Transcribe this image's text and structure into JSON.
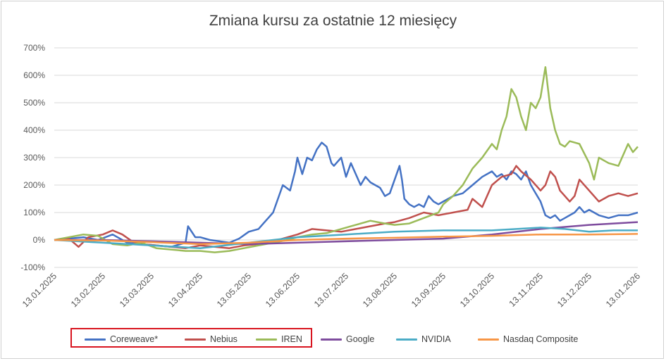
{
  "chart_data": {
    "type": "line",
    "title": "Zmiana kursu za ostatnie 12 miesięcy",
    "xlabel": "",
    "ylabel": "",
    "ylim": [
      -100,
      700
    ],
    "yticks": [
      "-100%",
      "0%",
      "100%",
      "200%",
      "300%",
      "400%",
      "500%",
      "600%",
      "700%"
    ],
    "ytick_values": [
      -100,
      0,
      100,
      200,
      300,
      400,
      500,
      600,
      700
    ],
    "xticks": [
      "13.01.2025",
      "13.02.2025",
      "13.03.2025",
      "13.04.2025",
      "13.05.2025",
      "13.06.2025",
      "13.07.2025",
      "13.08.2025",
      "13.09.2025",
      "13.10.2025",
      "13.11.2025",
      "13.12.2025",
      "13.01.2026"
    ],
    "x_months": [
      0,
      1,
      2,
      3,
      4,
      5,
      6,
      7,
      8,
      9,
      10,
      11,
      12
    ],
    "grid": true,
    "legend_position": "bottom",
    "highlighted_legend": [
      "Coreweave*",
      "Nebius",
      "IREN"
    ],
    "series": [
      {
        "name": "Coreweave*",
        "color": "#4472c4",
        "x": [
          0,
          0.3,
          0.6,
          0.9,
          1.2,
          1.5,
          1.8,
          2.1,
          2.4,
          2.7,
          2.75,
          2.9,
          3.0,
          3.2,
          3.4,
          3.6,
          3.8,
          4.0,
          4.2,
          4.3,
          4.5,
          4.7,
          4.85,
          4.95,
          5.0,
          5.1,
          5.2,
          5.3,
          5.4,
          5.5,
          5.6,
          5.7,
          5.75,
          5.9,
          6.0,
          6.1,
          6.2,
          6.3,
          6.4,
          6.5,
          6.6,
          6.7,
          6.8,
          6.9,
          7.0,
          7.1,
          7.15,
          7.2,
          7.3,
          7.4,
          7.5,
          7.6,
          7.7,
          7.8,
          7.9,
          8.0,
          8.2,
          8.4,
          8.6,
          8.8,
          9.0,
          9.1,
          9.2,
          9.3,
          9.4,
          9.5,
          9.6,
          9.7,
          9.8,
          9.9,
          10.0,
          10.1,
          10.2,
          10.3,
          10.4,
          10.5,
          10.6,
          10.7,
          10.8,
          10.9,
          11.0,
          11.2,
          11.4,
          11.6,
          11.8,
          12.0
        ],
        "values": [
          0,
          5,
          10,
          0,
          20,
          -10,
          -15,
          -20,
          -25,
          -10,
          50,
          10,
          10,
          0,
          -5,
          -10,
          5,
          30,
          40,
          60,
          100,
          200,
          180,
          250,
          300,
          240,
          300,
          290,
          330,
          355,
          340,
          280,
          270,
          300,
          230,
          280,
          240,
          200,
          230,
          210,
          200,
          190,
          160,
          170,
          220,
          270,
          220,
          150,
          130,
          120,
          130,
          120,
          160,
          140,
          130,
          140,
          160,
          170,
          200,
          230,
          250,
          230,
          240,
          220,
          250,
          240,
          220,
          250,
          200,
          170,
          140,
          90,
          80,
          90,
          70,
          80,
          90,
          100,
          120,
          100,
          110,
          90,
          80,
          90,
          90,
          100
        ]
      },
      {
        "name": "Nebius",
        "color": "#c0504d",
        "x": [
          0,
          0.3,
          0.5,
          0.7,
          1.0,
          1.2,
          1.4,
          1.6,
          1.8,
          2.1,
          2.4,
          2.7,
          3.0,
          3.3,
          3.6,
          3.9,
          4.2,
          4.5,
          4.8,
          5.0,
          5.3,
          5.6,
          5.9,
          6.2,
          6.5,
          6.8,
          7.0,
          7.3,
          7.6,
          7.9,
          8.2,
          8.5,
          8.6,
          8.8,
          9.0,
          9.2,
          9.4,
          9.5,
          9.6,
          9.8,
          10.0,
          10.1,
          10.2,
          10.3,
          10.4,
          10.5,
          10.6,
          10.7,
          10.8,
          11.0,
          11.2,
          11.4,
          11.6,
          11.8,
          12.0
        ],
        "values": [
          0,
          5,
          -25,
          10,
          20,
          35,
          20,
          -5,
          -15,
          -20,
          -25,
          -30,
          -20,
          -25,
          -30,
          -20,
          -15,
          -5,
          10,
          20,
          40,
          35,
          30,
          40,
          50,
          60,
          65,
          80,
          100,
          90,
          100,
          110,
          150,
          120,
          200,
          230,
          240,
          270,
          250,
          220,
          180,
          200,
          250,
          230,
          180,
          160,
          140,
          160,
          220,
          180,
          140,
          160,
          170,
          160,
          170
        ]
      },
      {
        "name": "IREN",
        "color": "#9bbb59",
        "x": [
          0,
          0.3,
          0.6,
          0.9,
          1.2,
          1.5,
          1.8,
          2.1,
          2.4,
          2.7,
          3.0,
          3.3,
          3.6,
          3.9,
          4.2,
          4.5,
          4.8,
          5.0,
          5.3,
          5.6,
          5.9,
          6.2,
          6.5,
          6.8,
          7.0,
          7.3,
          7.6,
          7.9,
          8.0,
          8.2,
          8.4,
          8.6,
          8.8,
          9.0,
          9.1,
          9.2,
          9.3,
          9.4,
          9.5,
          9.6,
          9.7,
          9.8,
          9.9,
          10.0,
          10.1,
          10.2,
          10.3,
          10.4,
          10.5,
          10.6,
          10.8,
          11.0,
          11.1,
          11.2,
          11.4,
          11.6,
          11.8,
          11.9,
          12.0
        ],
        "values": [
          0,
          10,
          20,
          15,
          -15,
          -20,
          -10,
          -30,
          -35,
          -40,
          -40,
          -45,
          -40,
          -30,
          -20,
          -10,
          0,
          10,
          20,
          25,
          40,
          55,
          70,
          60,
          55,
          60,
          80,
          100,
          130,
          160,
          200,
          260,
          300,
          350,
          330,
          400,
          450,
          550,
          520,
          450,
          400,
          500,
          480,
          520,
          630,
          480,
          400,
          350,
          340,
          360,
          350,
          280,
          220,
          300,
          280,
          270,
          350,
          320,
          340
        ]
      },
      {
        "name": "Google",
        "color": "#7e4c9e",
        "x": [
          0,
          1,
          2,
          3,
          4,
          5,
          6,
          7,
          8,
          9,
          10,
          11,
          11.5,
          12
        ],
        "values": [
          0,
          0,
          -5,
          -10,
          -15,
          -10,
          -5,
          0,
          5,
          20,
          40,
          55,
          60,
          65
        ]
      },
      {
        "name": "NVIDIA",
        "color": "#4bacc6",
        "x": [
          0,
          1,
          2,
          3,
          4,
          5,
          6,
          7,
          8,
          9,
          9.5,
          10,
          10.5,
          11,
          11.5,
          12
        ],
        "values": [
          0,
          -10,
          -20,
          -30,
          -10,
          10,
          20,
          30,
          35,
          35,
          40,
          45,
          40,
          30,
          35,
          35
        ]
      },
      {
        "name": "Nasdaq Composite",
        "color": "#f79646",
        "x": [
          0,
          1,
          2,
          3,
          4,
          5,
          6,
          7,
          8,
          9,
          10,
          11,
          12
        ],
        "values": [
          0,
          -2,
          -8,
          -15,
          -10,
          0,
          5,
          8,
          12,
          15,
          20,
          20,
          22
        ]
      }
    ]
  }
}
